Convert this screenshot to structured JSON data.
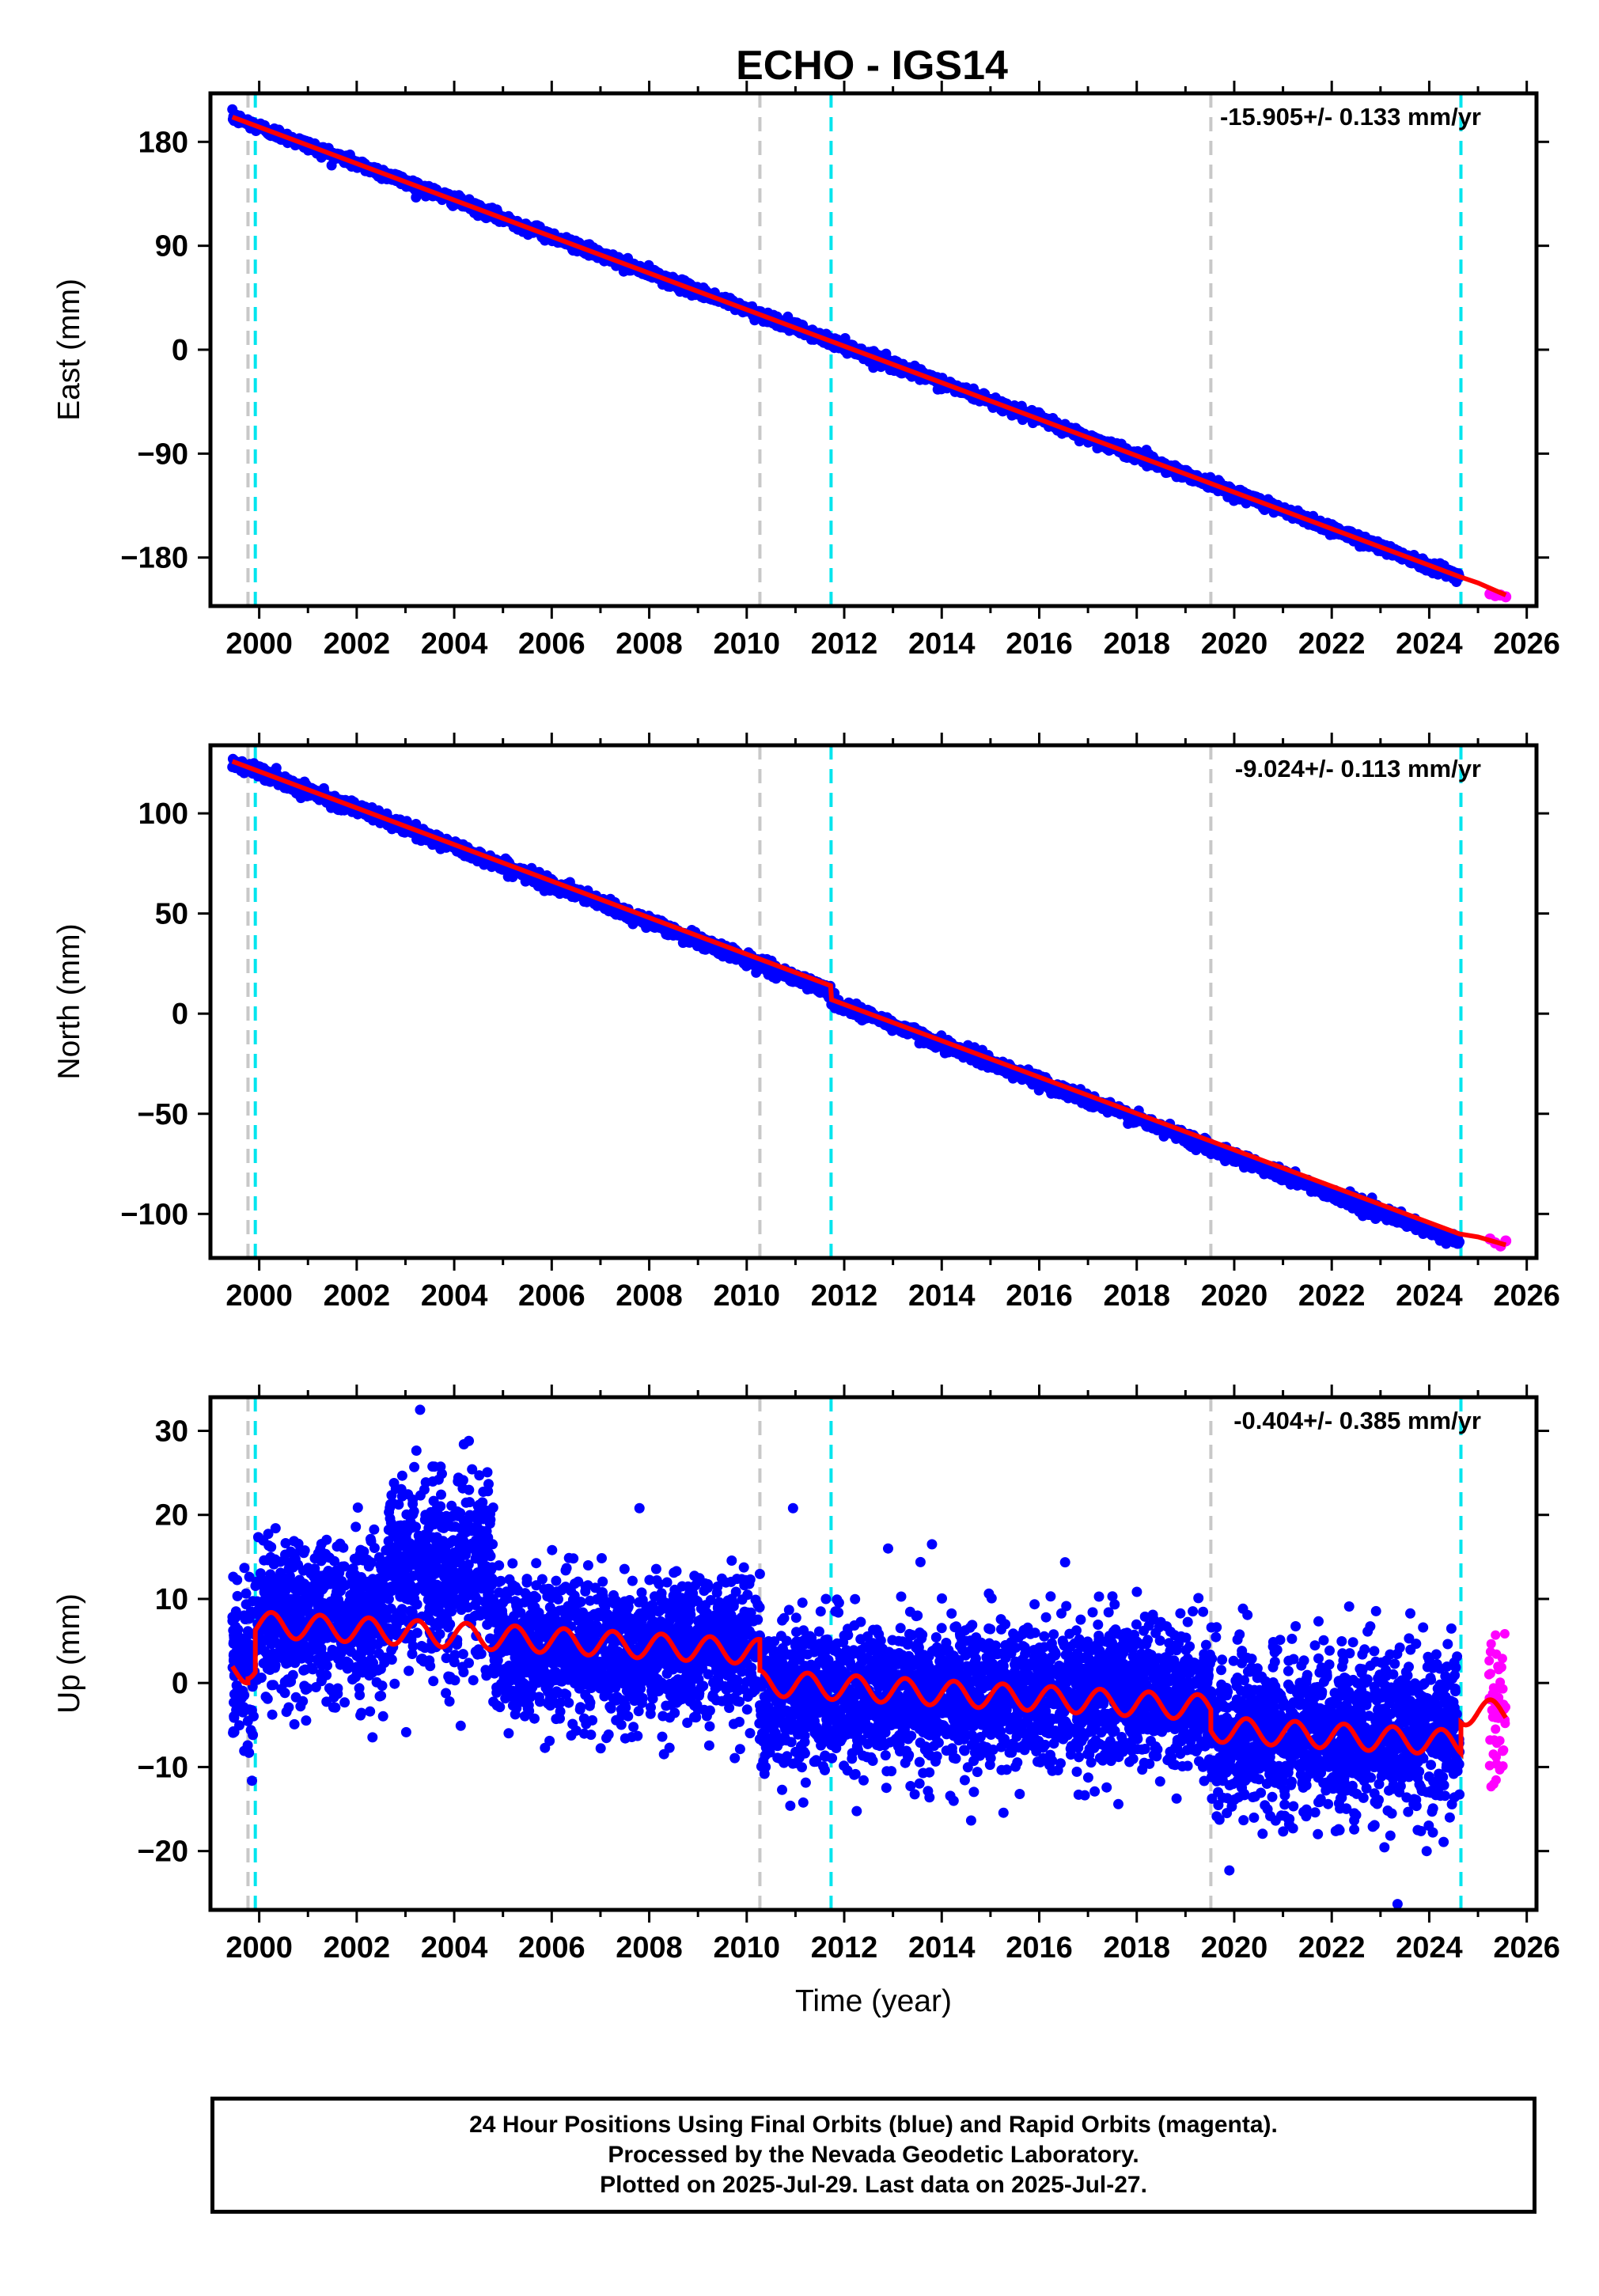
{
  "title": "ECHO - IGS14",
  "footer": {
    "line1": "24 Hour Positions Using Final Orbits (blue) and Rapid Orbits (magenta).",
    "line2": "Processed by the Nevada Geodetic Laboratory.",
    "line3": "Plotted on 2025-Jul-29. Last data on 2025-Jul-27."
  },
  "colors": {
    "final": "#0000ff",
    "rapid": "#ff00ff",
    "model": "#ff0000",
    "offset_equipment": "#00e5ee",
    "offset_earthquake": "#c8c8c8"
  },
  "chart_data": [
    {
      "type": "scatter",
      "component": "east",
      "ylabel": "East (mm)",
      "xlabel": "",
      "xlim": [
        1999.0,
        2026.2
      ],
      "ylim": [
        -222,
        222
      ],
      "yticks": [
        -180,
        -90,
        0,
        90,
        180
      ],
      "yticklabels": [
        "−180",
        "−90",
        "0",
        "90",
        "180"
      ],
      "xticks": [
        2000,
        2002,
        2004,
        2006,
        2008,
        2010,
        2012,
        2014,
        2016,
        2018,
        2020,
        2022,
        2024,
        2026
      ],
      "rate_text": "-15.905+/- 0.133 mm/yr",
      "final": {
        "start": 1999.45,
        "end": 2024.62,
        "start_value": 201.5,
        "end_value": -196.5,
        "scatter": 2.4
      },
      "rapid": {
        "start": 2024.85,
        "end": 2025.57,
        "values": [
          -211.5,
          -213.0,
          -212.5,
          -214.0
        ]
      },
      "model": {
        "points": [
          [
            1999.45,
            201.5
          ],
          [
            2024.62,
            -196.5
          ],
          [
            2025.0,
            -202.0
          ],
          [
            2025.57,
            -212.5
          ]
        ]
      },
      "offsets_equipment": [
        1999.92,
        2011.73,
        2024.65
      ],
      "offsets_earthquake": [
        1999.77,
        2010.27,
        2019.52
      ]
    },
    {
      "type": "scatter",
      "component": "north",
      "ylabel": "North (mm)",
      "xlabel": "",
      "xlim": [
        1999.0,
        2026.2
      ],
      "ylim": [
        -122,
        134
      ],
      "yticks": [
        -100,
        -50,
        0,
        50,
        100
      ],
      "yticklabels": [
        "−100",
        "−50",
        "0",
        "50",
        "100"
      ],
      "xticks": [
        2000,
        2002,
        2004,
        2006,
        2008,
        2010,
        2012,
        2014,
        2016,
        2018,
        2020,
        2022,
        2024,
        2026
      ],
      "rate_text": "-9.024+/- 0.113 mm/yr",
      "final": {
        "start": 1999.45,
        "end": 2024.62,
        "start_value": 126.0,
        "end_value": -110.0,
        "scatter": 1.6,
        "steps": [
          [
            2011.73,
            -4.5
          ]
        ]
      },
      "rapid": {
        "start": 2024.85,
        "end": 2025.57,
        "values": [
          -112.5,
          -114.5,
          -116.0,
          -113.5
        ]
      },
      "model": {
        "points": [
          [
            1999.45,
            126.0
          ],
          [
            2011.72,
            14.0
          ],
          [
            2011.74,
            7.0
          ],
          [
            2024.62,
            -110.0
          ],
          [
            2025.0,
            -111.5
          ],
          [
            2025.57,
            -115.5
          ]
        ]
      },
      "offsets_equipment": [
        1999.92,
        2011.73,
        2024.65
      ],
      "offsets_earthquake": [
        1999.77,
        2010.27,
        2019.52
      ]
    },
    {
      "type": "scatter",
      "component": "up",
      "ylabel": "Up (mm)",
      "xlabel": "Time (year)",
      "xlim": [
        1999.0,
        2026.2
      ],
      "ylim": [
        -27,
        34
      ],
      "yticks": [
        -20,
        -10,
        0,
        10,
        20,
        30
      ],
      "yticklabels": [
        "−20",
        "−10",
        "0",
        "10",
        "20",
        "30"
      ],
      "xticks": [
        2000,
        2002,
        2004,
        2006,
        2008,
        2010,
        2012,
        2014,
        2016,
        2018,
        2020,
        2022,
        2024,
        2026
      ],
      "rate_text": "-0.404+/- 0.385 mm/yr",
      "segments": [
        {
          "start": 1999.45,
          "end": 1999.92,
          "mean": 2.0,
          "scatter": 4.5
        },
        {
          "start": 1999.92,
          "end": 2002.6,
          "mean": 7.5,
          "scatter": 4.5
        },
        {
          "start": 2002.6,
          "end": 2004.8,
          "mean": 13.0,
          "scatter": 5.5
        },
        {
          "start": 2004.8,
          "end": 2010.27,
          "mean": 4.0,
          "scatter": 4.0
        },
        {
          "start": 2010.27,
          "end": 2019.52,
          "mean": -1.5,
          "scatter": 4.2
        },
        {
          "start": 2019.52,
          "end": 2024.62,
          "mean": -6.0,
          "scatter": 4.5
        }
      ],
      "rapid": {
        "start": 2024.85,
        "end": 2025.57,
        "mean": -3.0,
        "scatter": 5.5,
        "max": 11.0,
        "min": -14.0
      },
      "model": {
        "amplitude": 1.5,
        "pieces": [
          {
            "start": 1999.45,
            "end": 1999.77,
            "base": 1.5
          },
          {
            "start": 1999.77,
            "end": 1999.92,
            "base": 2.0
          },
          {
            "start": 1999.92,
            "end": 2010.27,
            "base": 7.0,
            "slope": -0.32
          },
          {
            "start": 2010.27,
            "end": 2019.52,
            "base": 0.0,
            "slope": -0.32
          },
          {
            "start": 2019.52,
            "end": 2024.65,
            "base": -5.5,
            "slope": -0.32
          },
          {
            "start": 2024.65,
            "end": 2025.57,
            "base": -3.5
          }
        ]
      },
      "outliers": [
        [
          2003.3,
          32.5
        ],
        [
          2004.3,
          28.8
        ],
        [
          2007.8,
          20.8
        ],
        [
          2010.95,
          20.8
        ],
        [
          2023.35,
          -26.3
        ],
        [
          2019.9,
          -22.3
        ],
        [
          2013.8,
          16.5
        ],
        [
          2012.9,
          16.0
        ]
      ],
      "offsets_equipment": [
        1999.92,
        2011.73,
        2024.65
      ],
      "offsets_earthquake": [
        1999.77,
        2010.27,
        2019.52
      ]
    }
  ]
}
